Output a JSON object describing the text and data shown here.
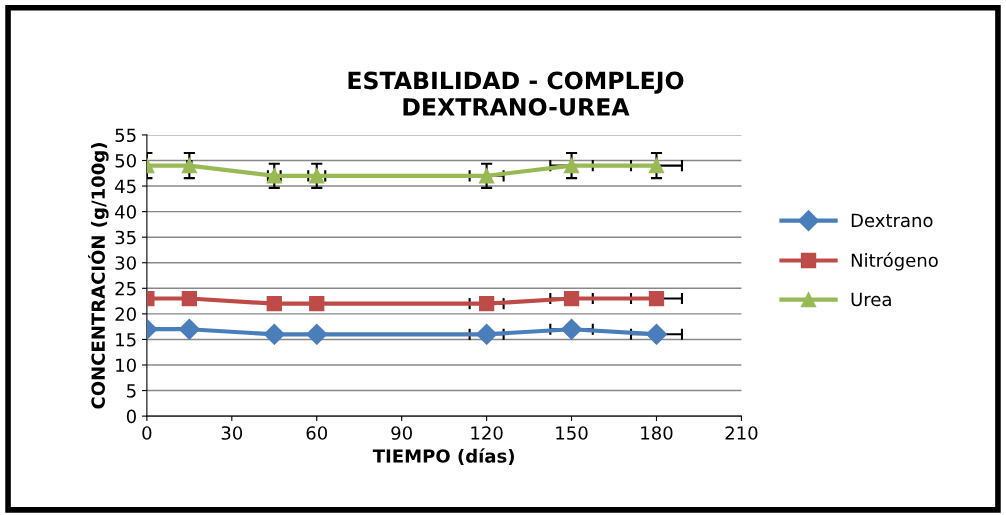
{
  "chart_data": {
    "type": "line",
    "title": "ESTABILIDAD - COMPLEJO\nDEXTRANO-UREA",
    "xlabel": "TIEMPO (días)",
    "ylabel": "CONCENTRACIÓN (g/100g)",
    "x": [
      0,
      15,
      45,
      60,
      120,
      150,
      180
    ],
    "series": [
      {
        "name": "Dextrano",
        "color": "#4a7ebb",
        "marker": "diamond",
        "values": [
          17,
          17,
          16,
          16,
          16,
          17,
          16
        ],
        "xerrors": [
          null,
          null,
          null,
          null,
          6,
          7.5,
          9
        ]
      },
      {
        "name": "Nitrógeno",
        "color": "#be4b48",
        "marker": "square",
        "values": [
          23,
          23,
          22,
          22,
          22,
          23,
          23
        ],
        "xerrors": [
          null,
          null,
          null,
          null,
          6,
          7.5,
          9
        ]
      },
      {
        "name": "Urea",
        "color": "#98b954",
        "marker": "triangle",
        "values": [
          49,
          49,
          47,
          47,
          47,
          49,
          49
        ],
        "errors": [
          2.45,
          2.45,
          2.35,
          2.35,
          2.35,
          2.45,
          2.45
        ],
        "xerrors": [
          0,
          0.75,
          2.25,
          3,
          6,
          7.5,
          9
        ]
      }
    ],
    "xlim": [
      0,
      210
    ],
    "xticks": [
      0,
      30,
      60,
      90,
      120,
      150,
      180,
      210
    ],
    "ylim": [
      0,
      55
    ],
    "yticks": [
      0,
      5,
      10,
      15,
      20,
      25,
      30,
      35,
      40,
      45,
      50,
      55
    ],
    "grid": "y",
    "legend": "right",
    "line_style": "solid"
  }
}
